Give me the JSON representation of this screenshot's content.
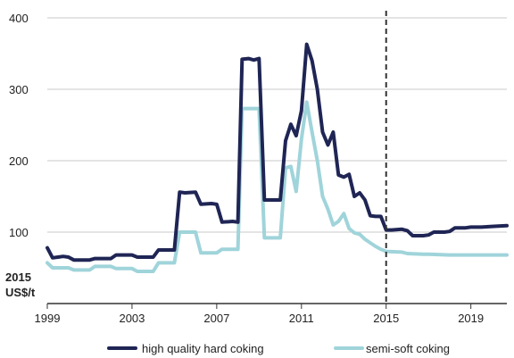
{
  "chart_data": {
    "type": "line",
    "title": "",
    "xlabel": "",
    "ylabel": "",
    "unit_label_lines": [
      "2015",
      "US$/t"
    ],
    "xlim": [
      1999.0,
      2020.7
    ],
    "ylim": [
      0,
      400
    ],
    "x_ticks": [
      1999,
      2003,
      2007,
      2011,
      2015,
      2019
    ],
    "y_ticks": [
      100,
      200,
      300,
      400
    ],
    "grid": true,
    "forecast_divider_x": 2015,
    "legend_position": "bottom",
    "series": [
      {
        "name": "high quality hard coking",
        "color": "#1f2554",
        "points": [
          [
            1999.0,
            78
          ],
          [
            1999.25,
            64
          ],
          [
            1999.5,
            65
          ],
          [
            1999.75,
            66
          ],
          [
            2000.0,
            65
          ],
          [
            2000.25,
            61
          ],
          [
            2000.5,
            61
          ],
          [
            2000.75,
            61
          ],
          [
            2001.0,
            61
          ],
          [
            2001.25,
            63
          ],
          [
            2001.5,
            63
          ],
          [
            2002.0,
            63
          ],
          [
            2002.25,
            68
          ],
          [
            2002.75,
            68
          ],
          [
            2003.0,
            68
          ],
          [
            2003.25,
            65
          ],
          [
            2003.75,
            65
          ],
          [
            2004.0,
            65
          ],
          [
            2004.25,
            75
          ],
          [
            2004.75,
            75
          ],
          [
            2005.0,
            75
          ],
          [
            2005.25,
            156
          ],
          [
            2005.5,
            155
          ],
          [
            2006.0,
            156
          ],
          [
            2006.25,
            139
          ],
          [
            2006.75,
            140
          ],
          [
            2007.0,
            139
          ],
          [
            2007.25,
            114
          ],
          [
            2007.75,
            115
          ],
          [
            2008.0,
            114
          ],
          [
            2008.2,
            342
          ],
          [
            2008.5,
            343
          ],
          [
            2008.75,
            341
          ],
          [
            2009.0,
            343
          ],
          [
            2009.25,
            145
          ],
          [
            2009.75,
            145
          ],
          [
            2010.0,
            145
          ],
          [
            2010.25,
            228
          ],
          [
            2010.5,
            251
          ],
          [
            2010.75,
            235
          ],
          [
            2011.0,
            270
          ],
          [
            2011.25,
            363
          ],
          [
            2011.5,
            340
          ],
          [
            2011.75,
            300
          ],
          [
            2012.0,
            240
          ],
          [
            2012.25,
            222
          ],
          [
            2012.5,
            240
          ],
          [
            2012.75,
            180
          ],
          [
            2013.0,
            177
          ],
          [
            2013.25,
            181
          ],
          [
            2013.5,
            150
          ],
          [
            2013.75,
            155
          ],
          [
            2014.0,
            145
          ],
          [
            2014.25,
            123
          ],
          [
            2014.5,
            122
          ],
          [
            2014.75,
            122
          ],
          [
            2015.0,
            103
          ],
          [
            2015.25,
            103
          ],
          [
            2015.75,
            104
          ],
          [
            2016.0,
            102
          ],
          [
            2016.25,
            95
          ],
          [
            2016.75,
            95
          ],
          [
            2017.0,
            96
          ],
          [
            2017.25,
            100
          ],
          [
            2017.75,
            100
          ],
          [
            2018.0,
            101
          ],
          [
            2018.25,
            106
          ],
          [
            2018.75,
            106
          ],
          [
            2019.0,
            107
          ],
          [
            2019.5,
            107
          ],
          [
            2020.0,
            108
          ],
          [
            2020.7,
            109
          ]
        ]
      },
      {
        "name": "semi-soft coking",
        "color": "#9fd4da",
        "points": [
          [
            1999.0,
            57
          ],
          [
            1999.25,
            50
          ],
          [
            1999.75,
            50
          ],
          [
            2000.0,
            50
          ],
          [
            2000.25,
            47
          ],
          [
            2000.75,
            47
          ],
          [
            2001.0,
            47
          ],
          [
            2001.25,
            52
          ],
          [
            2001.75,
            52
          ],
          [
            2002.0,
            52
          ],
          [
            2002.25,
            49
          ],
          [
            2002.75,
            49
          ],
          [
            2003.0,
            49
          ],
          [
            2003.25,
            45
          ],
          [
            2003.75,
            45
          ],
          [
            2004.0,
            45
          ],
          [
            2004.25,
            57
          ],
          [
            2004.75,
            57
          ],
          [
            2005.0,
            57
          ],
          [
            2005.25,
            100
          ],
          [
            2005.75,
            100
          ],
          [
            2006.0,
            100
          ],
          [
            2006.25,
            71
          ],
          [
            2006.75,
            71
          ],
          [
            2007.0,
            71
          ],
          [
            2007.25,
            76
          ],
          [
            2007.75,
            76
          ],
          [
            2008.0,
            76
          ],
          [
            2008.2,
            273
          ],
          [
            2008.75,
            273
          ],
          [
            2009.0,
            273
          ],
          [
            2009.25,
            92
          ],
          [
            2009.75,
            92
          ],
          [
            2010.0,
            92
          ],
          [
            2010.25,
            190
          ],
          [
            2010.5,
            192
          ],
          [
            2010.75,
            157
          ],
          [
            2011.0,
            230
          ],
          [
            2011.25,
            282
          ],
          [
            2011.5,
            240
          ],
          [
            2011.75,
            200
          ],
          [
            2012.0,
            150
          ],
          [
            2012.25,
            132
          ],
          [
            2012.5,
            110
          ],
          [
            2012.75,
            115
          ],
          [
            2013.0,
            126
          ],
          [
            2013.25,
            105
          ],
          [
            2013.5,
            99
          ],
          [
            2013.75,
            97
          ],
          [
            2014.0,
            90
          ],
          [
            2014.25,
            85
          ],
          [
            2014.5,
            80
          ],
          [
            2014.75,
            76
          ],
          [
            2015.0,
            73
          ],
          [
            2015.75,
            72
          ],
          [
            2016.0,
            70
          ],
          [
            2016.75,
            69
          ],
          [
            2017.0,
            69
          ],
          [
            2018.0,
            68
          ],
          [
            2019.0,
            68
          ],
          [
            2020.0,
            68
          ],
          [
            2020.7,
            68
          ]
        ]
      }
    ]
  }
}
